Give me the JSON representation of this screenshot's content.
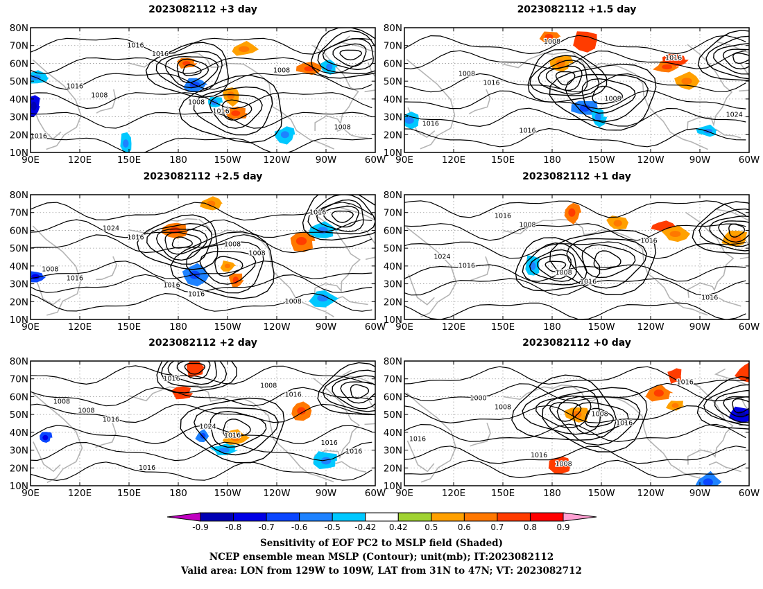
{
  "panels": [
    {
      "title": "2023082112 +3 day",
      "contour_labels": [
        "1016",
        "1008",
        "1016",
        "1016",
        "1008",
        "1008",
        "1016",
        "1016",
        "1008"
      ],
      "centers": [
        {
          "lon": -172,
          "lat": 56,
          "type": "low"
        },
        {
          "lon": -145,
          "lat": 34,
          "type": "high"
        },
        {
          "lon": -75,
          "lat": 65,
          "type": "low"
        }
      ],
      "shading": [
        {
          "lon": -170,
          "lat": 48,
          "level": -0.6
        },
        {
          "lon": -158,
          "lat": 38,
          "level": -0.5
        },
        {
          "lon": -145,
          "lat": 32,
          "level": 0.6
        },
        {
          "lon": -148,
          "lat": 42,
          "level": 0.5
        },
        {
          "lon": -175,
          "lat": 60,
          "level": 0.6
        },
        {
          "lon": 92,
          "lat": 36,
          "level": -0.8
        },
        {
          "lon": -100,
          "lat": 57,
          "level": 0.6
        },
        {
          "lon": -88,
          "lat": 58,
          "level": -0.5
        },
        {
          "lon": -115,
          "lat": 20,
          "level": -0.5
        },
        {
          "lon": 148,
          "lat": 15,
          "level": -0.5
        },
        {
          "lon": -140,
          "lat": 68,
          "level": 0.5
        },
        {
          "lon": 93,
          "lat": 52,
          "level": -0.5
        }
      ]
    },
    {
      "title": "2023082112 +1.5 day",
      "contour_labels": [
        "1016",
        "1016",
        "1008",
        "1008",
        "1016",
        "1024",
        "1008",
        "1016"
      ],
      "centers": [
        {
          "lon": -147,
          "lat": 42,
          "type": "high"
        },
        {
          "lon": -65,
          "lat": 63,
          "type": "low"
        },
        {
          "lon": -172,
          "lat": 52,
          "type": "low"
        }
      ],
      "shading": [
        {
          "lon": -160,
          "lat": 35,
          "level": -0.6
        },
        {
          "lon": -152,
          "lat": 30,
          "level": -0.5
        },
        {
          "lon": -110,
          "lat": 58,
          "level": 0.6
        },
        {
          "lon": -105,
          "lat": 62,
          "level": 0.7
        },
        {
          "lon": 178,
          "lat": 75,
          "level": 0.6
        },
        {
          "lon": -160,
          "lat": 72,
          "level": 0.7
        },
        {
          "lon": -175,
          "lat": 60,
          "level": 0.5
        },
        {
          "lon": -85,
          "lat": 22,
          "level": -0.5
        },
        {
          "lon": 93,
          "lat": 28,
          "level": -0.5
        },
        {
          "lon": -98,
          "lat": 50,
          "level": 0.5
        }
      ]
    },
    {
      "title": "2023082112 +2.5 day",
      "contour_labels": [
        "1016",
        "1016",
        "1016",
        "1008",
        "1016",
        "1008",
        "1024",
        "1016",
        "1008",
        "1008"
      ],
      "centers": [
        {
          "lon": -178,
          "lat": 53,
          "type": "low"
        },
        {
          "lon": -150,
          "lat": 40,
          "type": "high"
        },
        {
          "lon": -80,
          "lat": 68,
          "type": "low"
        }
      ],
      "shading": [
        {
          "lon": -170,
          "lat": 35,
          "level": -0.6
        },
        {
          "lon": -145,
          "lat": 32,
          "level": 0.6
        },
        {
          "lon": -150,
          "lat": 40,
          "level": 0.5
        },
        {
          "lon": 178,
          "lat": 60,
          "level": 0.6
        },
        {
          "lon": -160,
          "lat": 75,
          "level": 0.5
        },
        {
          "lon": -105,
          "lat": 54,
          "level": 0.6
        },
        {
          "lon": 93,
          "lat": 34,
          "level": -0.7
        },
        {
          "lon": -92,
          "lat": 22,
          "level": -0.5
        },
        {
          "lon": -92,
          "lat": 60,
          "level": -0.5
        }
      ]
    },
    {
      "title": "2023082112 +1 day",
      "contour_labels": [
        "1016",
        "1008",
        "1016",
        "1016",
        "1016",
        "1024",
        "1016",
        "1008"
      ],
      "centers": [
        {
          "lon": -147,
          "lat": 43,
          "type": "high"
        },
        {
          "lon": -68,
          "lat": 60,
          "type": "low"
        },
        {
          "lon": -178,
          "lat": 40,
          "type": "low"
        }
      ],
      "shading": [
        {
          "lon": -112,
          "lat": 62,
          "level": 0.7
        },
        {
          "lon": -105,
          "lat": 58,
          "level": 0.5
        },
        {
          "lon": -168,
          "lat": 70,
          "level": 0.6
        },
        {
          "lon": 168,
          "lat": 40,
          "level": -0.5
        },
        {
          "lon": -140,
          "lat": 64,
          "level": 0.5
        },
        {
          "lon": -68,
          "lat": 55,
          "level": 0.5
        }
      ]
    },
    {
      "title": "2023082112 +2 day",
      "contour_labels": [
        "1016",
        "1016",
        "1016",
        "1016",
        "1016",
        "1008",
        "1016",
        "1024",
        "1008",
        "1016",
        "1008"
      ],
      "centers": [
        {
          "lon": -145,
          "lat": 42,
          "type": "high"
        },
        {
          "lon": -70,
          "lat": 63,
          "type": "low"
        },
        {
          "lon": -170,
          "lat": 76,
          "type": "low"
        }
      ],
      "shading": [
        {
          "lon": -165,
          "lat": 38,
          "level": -0.6
        },
        {
          "lon": -152,
          "lat": 30,
          "level": -0.5
        },
        {
          "lon": -170,
          "lat": 76,
          "level": 0.7
        },
        {
          "lon": -178,
          "lat": 62,
          "level": 0.7
        },
        {
          "lon": -105,
          "lat": 52,
          "level": 0.6
        },
        {
          "lon": -90,
          "lat": 24,
          "level": -0.5
        },
        {
          "lon": 99,
          "lat": 37,
          "level": -0.7
        },
        {
          "lon": -145,
          "lat": 37,
          "level": 0.5
        }
      ]
    },
    {
      "title": "2023082112 +0 day",
      "contour_labels": [
        "1008",
        "1008",
        "1016",
        "1016",
        "1016",
        "1000",
        "1016",
        "1008"
      ],
      "centers": [
        {
          "lon": -152,
          "lat": 48,
          "type": "high"
        },
        {
          "lon": -65,
          "lat": 55,
          "type": "low"
        },
        {
          "lon": -172,
          "lat": 52,
          "type": "high"
        }
      ],
      "shading": [
        {
          "lon": -105,
          "lat": 72,
          "level": 0.7
        },
        {
          "lon": -60,
          "lat": 74,
          "level": 0.7
        },
        {
          "lon": -65,
          "lat": 50,
          "level": -0.8
        },
        {
          "lon": -115,
          "lat": 62,
          "level": 0.6
        },
        {
          "lon": -175,
          "lat": 22,
          "level": 0.7
        },
        {
          "lon": -165,
          "lat": 50,
          "level": 0.5
        },
        {
          "lon": -85,
          "lat": 12,
          "level": -0.6
        },
        {
          "lon": -105,
          "lat": 55,
          "level": 0.5
        }
      ]
    }
  ],
  "axes": {
    "x_ticks": [
      "90E",
      "120E",
      "150E",
      "180",
      "150W",
      "120W",
      "90W",
      "60W"
    ],
    "y_ticks": [
      "80N",
      "70N",
      "60N",
      "50N",
      "40N",
      "30N",
      "20N",
      "10N"
    ],
    "lon_range": [
      90,
      300
    ],
    "lat_range": [
      10,
      80
    ]
  },
  "colorbar": {
    "labels": [
      "-0.9",
      "-0.8",
      "-0.7",
      "-0.6",
      "-0.5",
      "-0.42",
      "0.42",
      "0.5",
      "0.6",
      "0.7",
      "0.8",
      "0.9"
    ],
    "colors": [
      "#c000c0",
      "#0000b4",
      "#0000e6",
      "#0a46ff",
      "#1e82ff",
      "#00c8ff",
      "#ffffff",
      "#a0d232",
      "#ffa000",
      "#ff7800",
      "#ff3c00",
      "#ff0000",
      "#ffa0d2"
    ]
  },
  "footer": {
    "line1": "Sensitivity of EOF PC2 to MSLP field (Shaded)",
    "line2": "NCEP ensemble mean MSLP (Contour); unit(mb); IT:2023082112",
    "line3": "Valid area: LON from 129W to 109W, LAT from 31N to 47N; VT: 2023082712"
  },
  "chart_data": {
    "type": "heatmap",
    "x_axis": {
      "range": [
        90,
        300
      ],
      "tick_labels": [
        "90E",
        "120E",
        "150E",
        "180",
        "150W",
        "120W",
        "90W",
        "60W"
      ]
    },
    "y_axis": {
      "range": [
        10,
        80
      ],
      "tick_labels": [
        "80N",
        "70N",
        "60N",
        "50N",
        "40N",
        "30N",
        "20N",
        "10N"
      ]
    },
    "colorbar_levels": [
      -0.9,
      -0.8,
      -0.7,
      -0.6,
      -0.5,
      -0.42,
      0.42,
      0.5,
      0.6,
      0.7,
      0.8,
      0.9
    ],
    "panels": [
      "2023082112 +3 day",
      "2023082112 +1.5 day",
      "2023082112 +2.5 day",
      "2023082112 +1 day",
      "2023082112 +2 day",
      "2023082112 +0 day"
    ],
    "grid": true
  }
}
